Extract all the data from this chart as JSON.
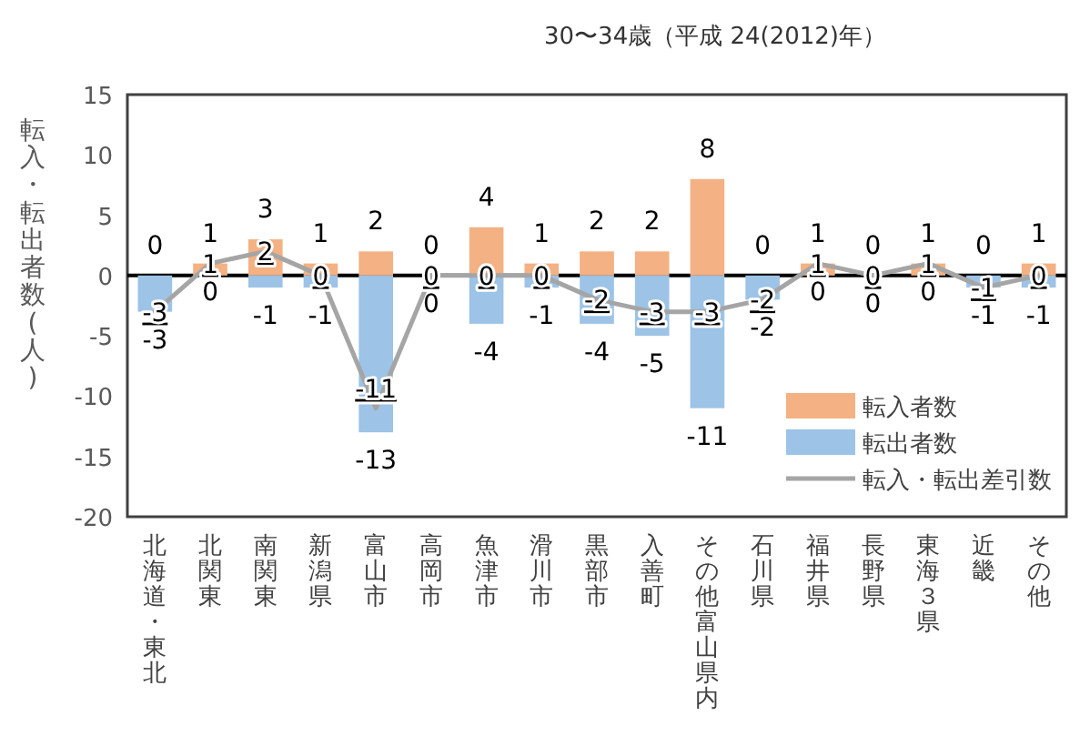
{
  "chart_data": {
    "type": "bar",
    "title": "30〜34歳（平成 24(2012)年）",
    "ylabel": "転入・転出者数(人)",
    "categories": [
      "北海道・東北",
      "北関東",
      "南関東",
      "新潟県",
      "富山市",
      "高岡市",
      "魚津市",
      "滑川市",
      "黒部市",
      "入善町",
      "その他富山県内",
      "石川県",
      "福井県",
      "長野県",
      "東海３県",
      "近畿",
      "その他"
    ],
    "series": [
      {
        "name": "転入者数",
        "type": "bar",
        "color": "#f4b183",
        "values": [
          0,
          1,
          3,
          1,
          2,
          0,
          4,
          1,
          2,
          2,
          8,
          0,
          1,
          0,
          1,
          0,
          1
        ]
      },
      {
        "name": "転出者数",
        "type": "bar",
        "color": "#9dc3e6",
        "values": [
          -3,
          0,
          -1,
          -1,
          -13,
          0,
          -4,
          -1,
          -4,
          -5,
          -11,
          -2,
          0,
          0,
          0,
          -1,
          -1
        ]
      },
      {
        "name": "転入・転出差引数",
        "type": "line",
        "color": "#a5a5a5",
        "values": [
          -3,
          1,
          2,
          0,
          -11,
          0,
          0,
          0,
          -2,
          -3,
          -3,
          -2,
          1,
          0,
          1,
          -1,
          0
        ]
      }
    ],
    "ylim": [
      -20,
      15
    ],
    "yticks": [
      -20,
      -15,
      -10,
      -5,
      0,
      5,
      10,
      15
    ],
    "stacked": true,
    "data_labels": true,
    "legend": "bottom right"
  }
}
